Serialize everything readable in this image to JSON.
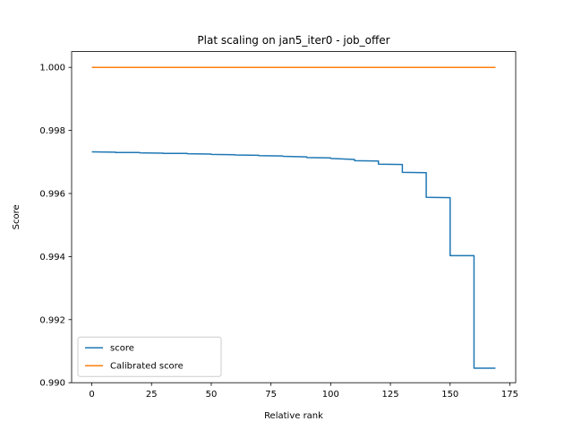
{
  "chart_data": {
    "type": "line",
    "title": "Plat scaling on jan5_iter0 - job_offer",
    "xlabel": "Relative rank",
    "ylabel": "Score",
    "xlim": [
      -8.45,
      177.45
    ],
    "ylim": [
      0.99,
      1.0005
    ],
    "xticks": [
      0,
      25,
      50,
      75,
      100,
      125,
      150,
      175
    ],
    "yticks": [
      0.99,
      0.992,
      0.994,
      0.996,
      0.998,
      1.0
    ],
    "ytick_labels": [
      "0.990",
      "0.992",
      "0.994",
      "0.996",
      "0.998",
      "1.000"
    ],
    "legend_position": "lower-left",
    "series": [
      {
        "name": "score",
        "color": "#1f77b4",
        "points": [
          [
            0,
            0.99732
          ],
          [
            10,
            0.99731
          ],
          [
            10,
            0.9973
          ],
          [
            20,
            0.9973
          ],
          [
            20,
            0.99729
          ],
          [
            30,
            0.99728
          ],
          [
            30,
            0.99727
          ],
          [
            40,
            0.99727
          ],
          [
            40,
            0.99726
          ],
          [
            50,
            0.99725
          ],
          [
            50,
            0.99724
          ],
          [
            60,
            0.99723
          ],
          [
            60,
            0.99722
          ],
          [
            70,
            0.99721
          ],
          [
            70,
            0.9972
          ],
          [
            80,
            0.99719
          ],
          [
            80,
            0.99718
          ],
          [
            90,
            0.99716
          ],
          [
            90,
            0.99714
          ],
          [
            100,
            0.99713
          ],
          [
            100,
            0.99711
          ],
          [
            110,
            0.99708
          ],
          [
            110,
            0.99704
          ],
          [
            120,
            0.99703
          ],
          [
            120,
            0.99693
          ],
          [
            130,
            0.99692
          ],
          [
            130,
            0.99667
          ],
          [
            140,
            0.99666
          ],
          [
            140,
            0.99588
          ],
          [
            150,
            0.99587
          ],
          [
            150,
            0.99403
          ],
          [
            160,
            0.99403
          ],
          [
            160,
            0.99046
          ],
          [
            169,
            0.99046
          ]
        ]
      },
      {
        "name": "Calibrated score",
        "color": "#ff7f0e",
        "points": [
          [
            0,
            1.0
          ],
          [
            169,
            1.0
          ]
        ]
      }
    ]
  }
}
